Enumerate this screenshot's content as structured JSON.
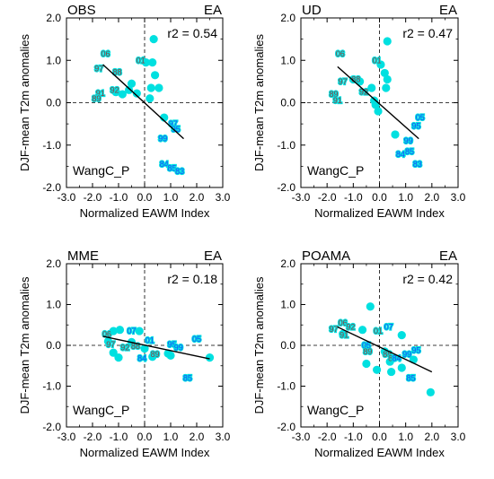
{
  "colors": {
    "background": "#ffffff",
    "axis": "#000000",
    "dot": "#00e0e0",
    "label_negative": "#8b4545",
    "label_positive": "#1e4bff",
    "regression": "#000000"
  },
  "chart_data": [
    {
      "type": "scatter",
      "panel": "OBS",
      "region": "EA",
      "r2": "r2 = 0.54",
      "footnote": "WangC_P",
      "xlabel": "Normalized EAWM Index",
      "ylabel": "DJF-mean T2m anomalies",
      "xlim": [
        -3.0,
        3.0
      ],
      "ylim": [
        -2.0,
        2.0
      ],
      "xticks": [
        "-3.0",
        "-2.0",
        "-1.0",
        "0.0",
        "1.0",
        "2.0",
        "3.0"
      ],
      "yticks": [
        "-2.0",
        "-1.0",
        "0.0",
        "1.0",
        "2.0"
      ],
      "points": [
        {
          "x": -1.1,
          "y": 0.25
        },
        {
          "x": -0.6,
          "y": 0.3
        },
        {
          "x": -0.3,
          "y": 0.22
        },
        {
          "x": -0.5,
          "y": 0.45
        },
        {
          "x": 0.05,
          "y": 0.95
        },
        {
          "x": 0.35,
          "y": 1.5
        },
        {
          "x": 0.4,
          "y": 0.65
        },
        {
          "x": 0.55,
          "y": 0.35
        },
        {
          "x": 0.3,
          "y": 0.95
        },
        {
          "x": 0.25,
          "y": 0.35
        },
        {
          "x": 0.75,
          "y": -0.35
        },
        {
          "x": -0.85,
          "y": 0.2
        },
        {
          "x": 0.2,
          "y": 0.1
        }
      ],
      "labels": [
        {
          "text": "06",
          "x": -1.5,
          "y": 1.15,
          "sign": "neg"
        },
        {
          "text": "97",
          "x": -1.75,
          "y": 0.8,
          "sign": "neg"
        },
        {
          "text": "88",
          "x": -1.05,
          "y": 0.72,
          "sign": "neg"
        },
        {
          "text": "92",
          "x": -1.15,
          "y": 0.3,
          "sign": "neg"
        },
        {
          "text": "91",
          "x": -1.7,
          "y": 0.22,
          "sign": "neg"
        },
        {
          "text": "89",
          "x": -1.85,
          "y": 0.1,
          "sign": "neg"
        },
        {
          "text": "01",
          "x": -0.15,
          "y": 1.0,
          "sign": "neg"
        },
        {
          "text": "97",
          "x": 1.1,
          "y": -0.5,
          "sign": "pos"
        },
        {
          "text": "95",
          "x": 1.2,
          "y": -0.62,
          "sign": "pos"
        },
        {
          "text": "99",
          "x": 0.7,
          "y": -0.85,
          "sign": "pos"
        },
        {
          "text": "84",
          "x": 0.75,
          "y": -1.45,
          "sign": "pos"
        },
        {
          "text": "85",
          "x": 1.05,
          "y": -1.55,
          "sign": "pos"
        },
        {
          "text": "83",
          "x": 1.35,
          "y": -1.62,
          "sign": "pos"
        }
      ],
      "fit": [
        [
          -1.6,
          0.9
        ],
        [
          1.5,
          -0.85
        ]
      ]
    },
    {
      "type": "scatter",
      "panel": "UD",
      "region": "EA",
      "r2": "r2 = 0.47",
      "footnote": "WangC_P",
      "xlabel": "Normalized EAWM Index",
      "ylabel": "DJF-mean T2m anomalies",
      "xlim": [
        -3.0,
        3.0
      ],
      "ylim": [
        -2.0,
        2.0
      ],
      "xticks": [
        "-3.0",
        "-2.0",
        "-1.0",
        "0.0",
        "1.0",
        "2.0",
        "3.0"
      ],
      "yticks": [
        "-2.0",
        "-1.0",
        "0.0",
        "1.0",
        "2.0"
      ],
      "points": [
        {
          "x": -1.0,
          "y": 0.55
        },
        {
          "x": -0.75,
          "y": 0.5
        },
        {
          "x": -0.3,
          "y": 0.35
        },
        {
          "x": -0.15,
          "y": -0.05
        },
        {
          "x": -0.05,
          "y": -0.2
        },
        {
          "x": 0.05,
          "y": 0.9
        },
        {
          "x": 0.3,
          "y": 1.45
        },
        {
          "x": 0.2,
          "y": 0.7
        },
        {
          "x": 0.3,
          "y": 0.55
        },
        {
          "x": 0.25,
          "y": 0.35
        },
        {
          "x": 0.6,
          "y": -0.75
        },
        {
          "x": -0.2,
          "y": 0.05
        }
      ],
      "labels": [
        {
          "text": "06",
          "x": -1.5,
          "y": 1.15,
          "sign": "neg"
        },
        {
          "text": "97",
          "x": -1.4,
          "y": 0.5,
          "sign": "neg"
        },
        {
          "text": "88",
          "x": -0.9,
          "y": 0.55,
          "sign": "neg"
        },
        {
          "text": "92",
          "x": -0.6,
          "y": 0.25,
          "sign": "neg"
        },
        {
          "text": "89",
          "x": -1.75,
          "y": 0.2,
          "sign": "neg"
        },
        {
          "text": "91",
          "x": -1.6,
          "y": 0.05,
          "sign": "neg"
        },
        {
          "text": "01",
          "x": -0.1,
          "y": 1.0,
          "sign": "neg"
        },
        {
          "text": "05",
          "x": 1.55,
          "y": -0.35,
          "sign": "pos"
        },
        {
          "text": "95",
          "x": 1.4,
          "y": -0.55,
          "sign": "pos"
        },
        {
          "text": "99",
          "x": 1.1,
          "y": -0.9,
          "sign": "pos"
        },
        {
          "text": "84",
          "x": 0.8,
          "y": -1.22,
          "sign": "pos"
        },
        {
          "text": "85",
          "x": 1.15,
          "y": -1.15,
          "sign": "pos"
        },
        {
          "text": "83",
          "x": 1.45,
          "y": -1.45,
          "sign": "pos"
        }
      ],
      "fit": [
        [
          -1.6,
          0.85
        ],
        [
          1.5,
          -0.85
        ]
      ]
    },
    {
      "type": "scatter",
      "panel": "MME",
      "region": "EA",
      "r2": "r2 = 0.18",
      "footnote": "WangC_P",
      "xlabel": "Normalized EAWM Index",
      "ylabel": "DJF-mean T2m anomalies",
      "xlim": [
        -3.0,
        3.0
      ],
      "ylim": [
        -2.0,
        2.0
      ],
      "xticks": [
        "-3.0",
        "-2.0",
        "-1.0",
        "0.0",
        "1.0",
        "2.0",
        "3.0"
      ],
      "yticks": [
        "-2.0",
        "-1.0",
        "0.0",
        "1.0",
        "2.0"
      ],
      "points": [
        {
          "x": -1.2,
          "y": 0.35
        },
        {
          "x": -0.95,
          "y": 0.38
        },
        {
          "x": -0.5,
          "y": 0.08
        },
        {
          "x": -0.2,
          "y": 0.35
        },
        {
          "x": 0.3,
          "y": -0.28
        },
        {
          "x": 0.9,
          "y": -0.2
        },
        {
          "x": 1.0,
          "y": -0.25
        },
        {
          "x": 2.5,
          "y": -0.3
        },
        {
          "x": -1.0,
          "y": -0.3
        },
        {
          "x": -1.4,
          "y": 0.1
        },
        {
          "x": -1.2,
          "y": -0.18
        },
        {
          "x": 0.0,
          "y": -0.08
        }
      ],
      "labels": [
        {
          "text": "06",
          "x": -1.45,
          "y": 0.28,
          "sign": "neg"
        },
        {
          "text": "07",
          "x": -0.5,
          "y": 0.35,
          "sign": "pos"
        },
        {
          "text": "97",
          "x": -1.3,
          "y": 0.02,
          "sign": "neg"
        },
        {
          "text": "92",
          "x": -0.75,
          "y": -0.05,
          "sign": "neg"
        },
        {
          "text": "88",
          "x": -0.35,
          "y": -0.02,
          "sign": "neg"
        },
        {
          "text": "01",
          "x": 0.2,
          "y": 0.12,
          "sign": "pos"
        },
        {
          "text": "95",
          "x": 1.05,
          "y": 0.02,
          "sign": "pos"
        },
        {
          "text": "99",
          "x": 1.3,
          "y": -0.05,
          "sign": "pos"
        },
        {
          "text": "05",
          "x": 2.0,
          "y": 0.15,
          "sign": "pos"
        },
        {
          "text": "84",
          "x": -0.1,
          "y": -0.32,
          "sign": "pos"
        },
        {
          "text": "85",
          "x": 1.65,
          "y": -0.8,
          "sign": "pos"
        },
        {
          "text": "89",
          "x": 0.4,
          "y": -0.22,
          "sign": "neg"
        }
      ],
      "fit": [
        [
          -1.6,
          0.22
        ],
        [
          2.5,
          -0.33
        ]
      ]
    },
    {
      "type": "scatter",
      "panel": "POAMA",
      "region": "EA",
      "r2": "r2 = 0.42",
      "footnote": "WangC_P",
      "xlabel": "Normalized EAWM Index",
      "ylabel": "DJF-mean T2m anomalies",
      "xlim": [
        -3.0,
        3.0
      ],
      "ylim": [
        -2.0,
        2.0
      ],
      "xticks": [
        "-3.0",
        "-2.0",
        "-1.0",
        "0.0",
        "1.0",
        "2.0",
        "3.0"
      ],
      "yticks": [
        "-2.0",
        "-1.0",
        "0.0",
        "1.0",
        "2.0"
      ],
      "points": [
        {
          "x": -1.4,
          "y": 0.28
        },
        {
          "x": -0.35,
          "y": 0.95
        },
        {
          "x": -0.65,
          "y": 0.38
        },
        {
          "x": -0.5,
          "y": -0.45
        },
        {
          "x": -0.1,
          "y": -0.6
        },
        {
          "x": 0.45,
          "y": -0.65
        },
        {
          "x": 0.85,
          "y": 0.25
        },
        {
          "x": 0.85,
          "y": -0.55
        },
        {
          "x": 1.3,
          "y": -0.35
        },
        {
          "x": 1.95,
          "y": -1.15
        },
        {
          "x": 0.2,
          "y": -0.15
        },
        {
          "x": 0.4,
          "y": -0.4
        }
      ],
      "labels": [
        {
          "text": "97",
          "x": -1.75,
          "y": 0.4,
          "sign": "neg"
        },
        {
          "text": "06",
          "x": -1.4,
          "y": 0.55,
          "sign": "neg"
        },
        {
          "text": "92",
          "x": -1.1,
          "y": 0.45,
          "sign": "neg"
        },
        {
          "text": "91",
          "x": -1.35,
          "y": 0.25,
          "sign": "neg"
        },
        {
          "text": "07",
          "x": 0.35,
          "y": 0.45,
          "sign": "pos"
        },
        {
          "text": "01",
          "x": -0.05,
          "y": 0.35,
          "sign": "neg"
        },
        {
          "text": "05",
          "x": -0.5,
          "y": 0.0,
          "sign": "pos"
        },
        {
          "text": "89",
          "x": -0.45,
          "y": -0.15,
          "sign": "neg"
        },
        {
          "text": "88",
          "x": 0.3,
          "y": -0.22,
          "sign": "neg"
        },
        {
          "text": "83",
          "x": 0.5,
          "y": -0.32,
          "sign": "neg"
        },
        {
          "text": "84",
          "x": 0.65,
          "y": -0.32,
          "sign": "pos"
        },
        {
          "text": "99",
          "x": 1.05,
          "y": -0.22,
          "sign": "pos"
        },
        {
          "text": "95",
          "x": 1.4,
          "y": -0.12,
          "sign": "pos"
        },
        {
          "text": "85",
          "x": 1.2,
          "y": -0.8,
          "sign": "pos"
        }
      ],
      "fit": [
        [
          -1.6,
          0.45
        ],
        [
          2.0,
          -0.65
        ]
      ]
    }
  ]
}
